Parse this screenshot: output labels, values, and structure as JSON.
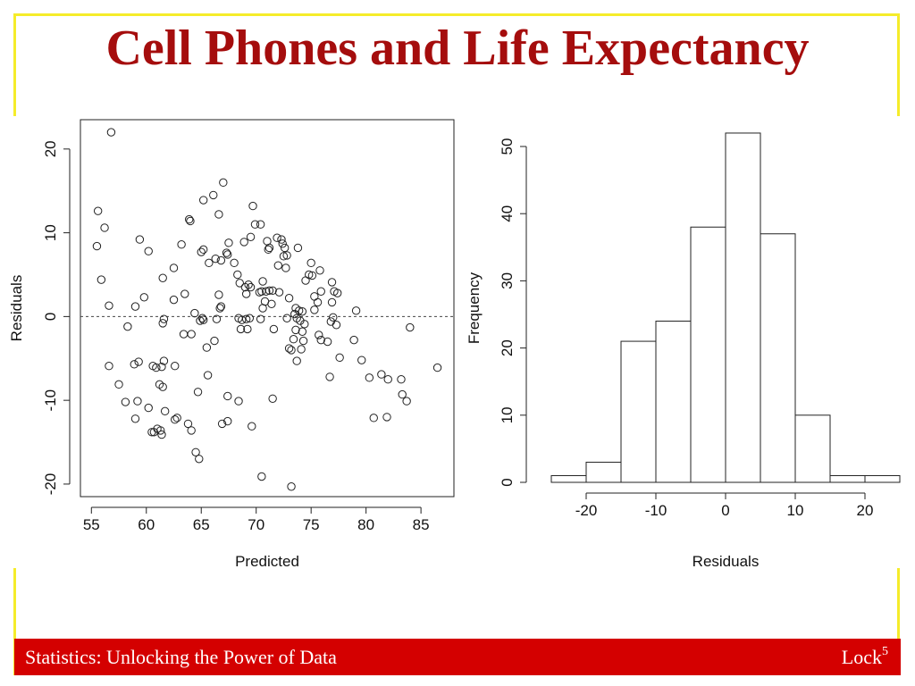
{
  "slide": {
    "title": "Cell Phones and Life Expectancy",
    "footer_left": "Statistics: Unlocking the Power of Data",
    "footer_right_text": "Lock",
    "footer_right_sup": "5",
    "colors": {
      "title": "#a50d0d",
      "frame": "#f5ec2a",
      "footer_bg": "#d40000"
    }
  },
  "chart_data": [
    {
      "type": "scatter",
      "xlabel": "Predicted",
      "ylabel": "Residuals",
      "xlim": [
        54,
        88
      ],
      "ylim": [
        -21.5,
        23.5
      ],
      "xticks": [
        55,
        60,
        65,
        70,
        75,
        80,
        85
      ],
      "yticks": [
        -20,
        -10,
        0,
        10,
        20
      ],
      "reference_line": {
        "y": 0,
        "style": "dashed"
      },
      "points": [
        [
          56.8,
          22.0
        ],
        [
          55.6,
          12.6
        ],
        [
          56.2,
          10.6
        ],
        [
          55.5,
          8.4
        ],
        [
          55.9,
          4.4
        ],
        [
          56.6,
          1.3
        ],
        [
          59.4,
          9.2
        ],
        [
          60.2,
          7.8
        ],
        [
          59.8,
          2.3
        ],
        [
          59.0,
          1.2
        ],
        [
          58.3,
          -1.2
        ],
        [
          58.9,
          -5.7
        ],
        [
          59.3,
          -5.4
        ],
        [
          56.6,
          -5.9
        ],
        [
          57.5,
          -8.1
        ],
        [
          58.1,
          -10.2
        ],
        [
          59.2,
          -10.1
        ],
        [
          59.0,
          -12.2
        ],
        [
          60.2,
          -10.9
        ],
        [
          60.5,
          -13.8
        ],
        [
          60.7,
          -13.8
        ],
        [
          60.6,
          -5.9
        ],
        [
          60.9,
          -6.1
        ],
        [
          61.4,
          -6.0
        ],
        [
          61.6,
          -5.3
        ],
        [
          61.2,
          -8.1
        ],
        [
          61.5,
          -8.4
        ],
        [
          61.7,
          -11.3
        ],
        [
          61.0,
          -13.4
        ],
        [
          61.3,
          -13.6
        ],
        [
          61.4,
          -14.1
        ],
        [
          61.5,
          4.6
        ],
        [
          61.6,
          -0.3
        ],
        [
          61.5,
          -0.8
        ],
        [
          62.5,
          5.8
        ],
        [
          62.5,
          2.0
        ],
        [
          62.6,
          -5.9
        ],
        [
          62.8,
          -12.1
        ],
        [
          62.6,
          -12.3
        ],
        [
          63.2,
          8.6
        ],
        [
          63.5,
          2.7
        ],
        [
          63.4,
          -2.1
        ],
        [
          63.9,
          11.6
        ],
        [
          64.0,
          11.4
        ],
        [
          64.1,
          -2.1
        ],
        [
          64.4,
          0.4
        ],
        [
          63.8,
          -12.8
        ],
        [
          64.1,
          -13.6
        ],
        [
          64.5,
          -16.2
        ],
        [
          64.8,
          -17.0
        ],
        [
          64.7,
          -9.0
        ],
        [
          65.2,
          13.9
        ],
        [
          65.2,
          8.0
        ],
        [
          65.0,
          7.7
        ],
        [
          65.7,
          6.4
        ],
        [
          65.1,
          -0.2
        ],
        [
          64.9,
          -0.5
        ],
        [
          65.2,
          -0.4
        ],
        [
          65.5,
          -3.7
        ],
        [
          65.6,
          -7.0
        ],
        [
          66.1,
          14.5
        ],
        [
          66.6,
          12.2
        ],
        [
          66.3,
          6.9
        ],
        [
          66.8,
          6.7
        ],
        [
          66.6,
          2.6
        ],
        [
          66.8,
          1.2
        ],
        [
          66.7,
          1.0
        ],
        [
          66.4,
          -0.3
        ],
        [
          66.2,
          -2.9
        ],
        [
          66.9,
          -12.8
        ],
        [
          67.4,
          -12.5
        ],
        [
          67.0,
          16.0
        ],
        [
          67.5,
          8.8
        ],
        [
          67.3,
          7.6
        ],
        [
          67.4,
          7.4
        ],
        [
          67.4,
          -9.5
        ],
        [
          68.0,
          6.4
        ],
        [
          68.3,
          5.0
        ],
        [
          68.5,
          4.0
        ],
        [
          68.4,
          -0.2
        ],
        [
          68.7,
          -0.4
        ],
        [
          68.6,
          -1.5
        ],
        [
          68.4,
          -10.1
        ],
        [
          68.9,
          8.9
        ],
        [
          69.3,
          3.8
        ],
        [
          69.0,
          3.5
        ],
        [
          69.1,
          2.7
        ],
        [
          69.5,
          3.5
        ],
        [
          69.1,
          -0.3
        ],
        [
          69.4,
          -0.2
        ],
        [
          69.2,
          -1.5
        ],
        [
          69.7,
          13.2
        ],
        [
          69.5,
          9.5
        ],
        [
          69.9,
          11.0
        ],
        [
          69.6,
          -13.1
        ],
        [
          70.4,
          11.0
        ],
        [
          70.6,
          4.2
        ],
        [
          70.5,
          3.0
        ],
        [
          70.3,
          2.9
        ],
        [
          70.9,
          3.0
        ],
        [
          70.8,
          1.8
        ],
        [
          70.6,
          1.0
        ],
        [
          70.4,
          -0.3
        ],
        [
          70.5,
          -19.1
        ],
        [
          71.0,
          9.0
        ],
        [
          71.2,
          8.2
        ],
        [
          71.1,
          8.0
        ],
        [
          71.2,
          3.1
        ],
        [
          71.5,
          3.1
        ],
        [
          71.4,
          1.5
        ],
        [
          71.6,
          -1.5
        ],
        [
          71.5,
          -9.8
        ],
        [
          71.9,
          9.4
        ],
        [
          72.3,
          9.2
        ],
        [
          72.0,
          6.1
        ],
        [
          72.1,
          2.9
        ],
        [
          72.4,
          8.7
        ],
        [
          72.6,
          8.2
        ],
        [
          72.5,
          7.2
        ],
        [
          72.8,
          7.3
        ],
        [
          72.7,
          5.8
        ],
        [
          72.8,
          -0.2
        ],
        [
          73.0,
          2.2
        ],
        [
          73.0,
          -3.8
        ],
        [
          73.2,
          -4.0
        ],
        [
          73.2,
          -20.3
        ],
        [
          73.5,
          0.3
        ],
        [
          73.6,
          1.0
        ],
        [
          73.8,
          8.2
        ],
        [
          73.7,
          -0.2
        ],
        [
          73.6,
          -1.6
        ],
        [
          73.4,
          -2.7
        ],
        [
          73.7,
          -5.3
        ],
        [
          73.9,
          0.7
        ],
        [
          74.2,
          0.6
        ],
        [
          74.0,
          -0.5
        ],
        [
          74.4,
          -0.9
        ],
        [
          74.2,
          -1.8
        ],
        [
          74.3,
          -2.9
        ],
        [
          74.1,
          -3.9
        ],
        [
          74.5,
          4.3
        ],
        [
          74.8,
          5.0
        ],
        [
          75.0,
          6.4
        ],
        [
          75.1,
          4.9
        ],
        [
          75.3,
          2.4
        ],
        [
          75.6,
          1.7
        ],
        [
          75.8,
          5.5
        ],
        [
          75.9,
          3.0
        ],
        [
          75.3,
          0.8
        ],
        [
          75.7,
          -2.2
        ],
        [
          75.9,
          -2.8
        ],
        [
          76.5,
          -3.0
        ],
        [
          76.9,
          1.7
        ],
        [
          77.0,
          -0.1
        ],
        [
          76.8,
          -0.6
        ],
        [
          77.3,
          -1.0
        ],
        [
          76.9,
          4.1
        ],
        [
          77.1,
          3.0
        ],
        [
          77.4,
          2.8
        ],
        [
          76.7,
          -7.2
        ],
        [
          77.6,
          -4.9
        ],
        [
          78.9,
          -2.8
        ],
        [
          79.1,
          0.7
        ],
        [
          79.6,
          -5.2
        ],
        [
          80.3,
          -7.3
        ],
        [
          80.7,
          -12.1
        ],
        [
          81.4,
          -6.9
        ],
        [
          82.0,
          -7.5
        ],
        [
          81.9,
          -12.0
        ],
        [
          83.2,
          -7.5
        ],
        [
          83.3,
          -9.3
        ],
        [
          83.7,
          -10.1
        ],
        [
          84.0,
          -1.3
        ],
        [
          86.5,
          -6.1
        ]
      ]
    },
    {
      "type": "histogram",
      "xlabel": "Residuals",
      "ylabel": "Frequency",
      "xlim": [
        -25,
        25
      ],
      "ylim": [
        0,
        55
      ],
      "xticks": [
        -20,
        -10,
        0,
        10,
        20
      ],
      "yticks": [
        0,
        10,
        20,
        30,
        40,
        50
      ],
      "bins": [
        {
          "from": -25,
          "to": -20,
          "count": 1
        },
        {
          "from": -20,
          "to": -15,
          "count": 3
        },
        {
          "from": -15,
          "to": -10,
          "count": 21
        },
        {
          "from": -10,
          "to": -5,
          "count": 24
        },
        {
          "from": -5,
          "to": 0,
          "count": 38
        },
        {
          "from": 0,
          "to": 5,
          "count": 52
        },
        {
          "from": 5,
          "to": 10,
          "count": 37
        },
        {
          "from": 10,
          "to": 15,
          "count": 10
        },
        {
          "from": 15,
          "to": 20,
          "count": 1
        },
        {
          "from": 20,
          "to": 25,
          "count": 1
        }
      ]
    }
  ]
}
